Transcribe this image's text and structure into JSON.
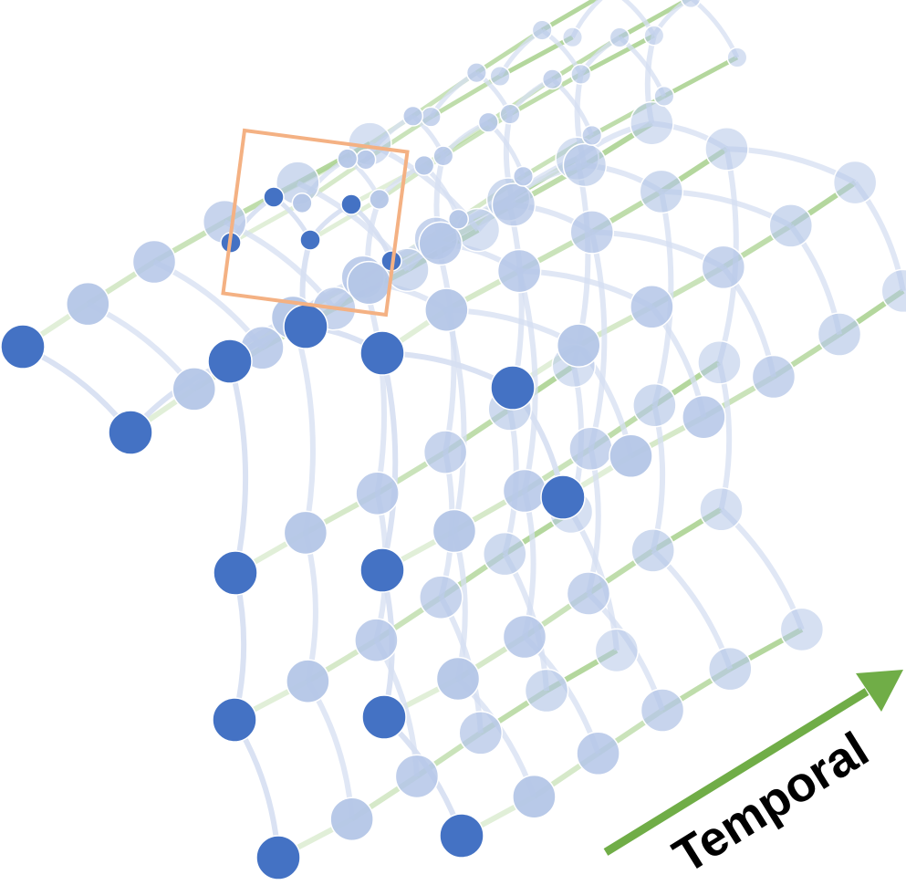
{
  "diagram": {
    "temporal_label": "Temporal",
    "frames": 6,
    "joints_per_frame": 13,
    "highlighted_frame": 0,
    "colors": {
      "joint_current": "#4472c4",
      "joint_faded": "#b4c6e7",
      "skeleton_edge": "#d6dff2",
      "temporal_edge": "#a9d18e",
      "arrow": "#70ad47",
      "focus_box": "#f4b183"
    }
  }
}
